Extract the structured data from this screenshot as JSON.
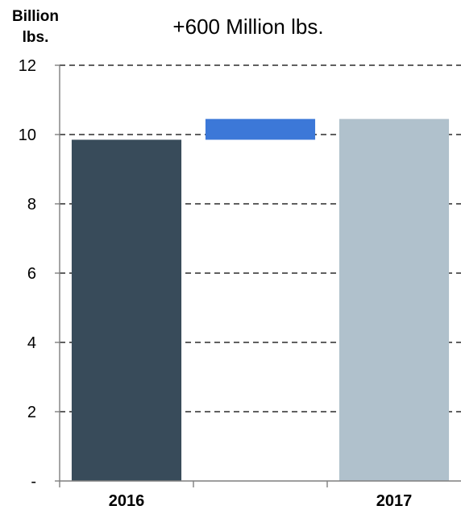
{
  "chart_data": {
    "type": "bar",
    "title": "+600 Million lbs.",
    "ylabel": [
      "Billion",
      "lbs."
    ],
    "xlabel": "",
    "ylim": [
      0,
      12
    ],
    "yticks": [
      0,
      2,
      4,
      6,
      8,
      10,
      12
    ],
    "ytick_labels": [
      "-",
      "2",
      "4",
      "6",
      "8",
      "10",
      "12"
    ],
    "grid": true,
    "legend": "none",
    "slots": [
      "2016",
      "",
      "2017"
    ],
    "bars": [
      {
        "category": "2016",
        "base": 0,
        "value": 9.85,
        "color": "#384b5a"
      },
      {
        "category": "",
        "base": 9.85,
        "value": 10.45,
        "color": "#3c78d8"
      },
      {
        "category": "2017",
        "base": 0,
        "value": 10.45,
        "color": "#b0c1cc"
      }
    ],
    "colors": {
      "gridline": "#2b2b2b",
      "axis": "#7f7f7f"
    }
  }
}
